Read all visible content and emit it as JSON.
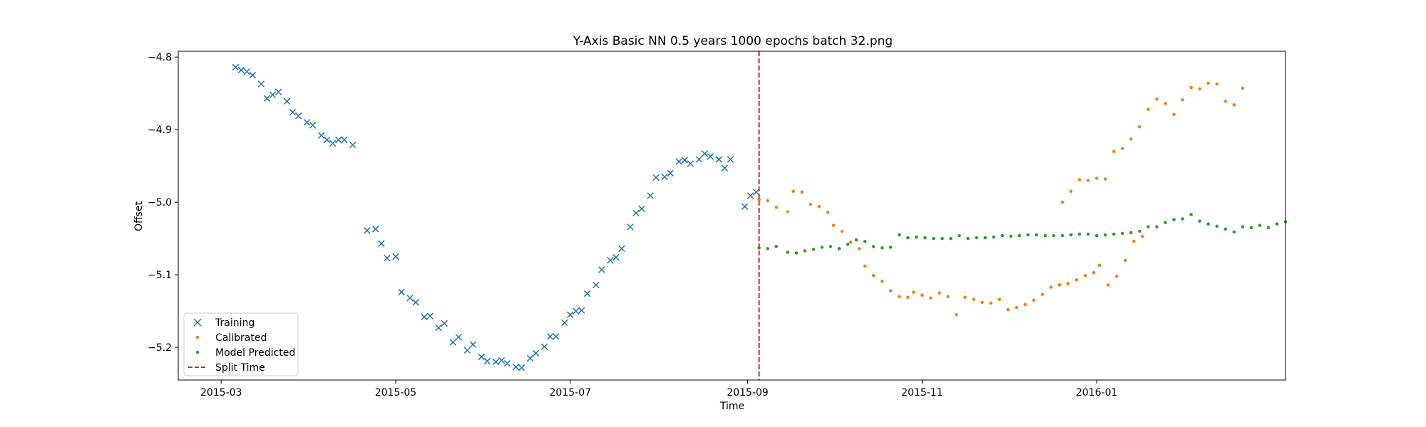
{
  "chart_data": {
    "type": "scatter",
    "title": "Y-Axis Basic NN 0.5 years 1000 epochs batch 32.png",
    "xlabel": "Time",
    "ylabel": "Offset",
    "xlim": [
      "2015-02-14",
      "2016-03-07"
    ],
    "ylim": [
      -5.245,
      -4.792
    ],
    "x_ticks": [
      {
        "date": "2015-03-01",
        "label": "2015-03"
      },
      {
        "date": "2015-05-01",
        "label": "2015-05"
      },
      {
        "date": "2015-07-01",
        "label": "2015-07"
      },
      {
        "date": "2015-09-01",
        "label": "2015-09"
      },
      {
        "date": "2015-11-01",
        "label": "2015-11"
      },
      {
        "date": "2016-01-01",
        "label": "2016-01"
      }
    ],
    "y_ticks": [
      {
        "value": -4.8,
        "label": "−4.8"
      },
      {
        "value": -4.9,
        "label": "−4.9"
      },
      {
        "value": -5.0,
        "label": "−5.0"
      },
      {
        "value": -5.1,
        "label": "−5.1"
      },
      {
        "value": -5.2,
        "label": "−5.2"
      }
    ],
    "grid": false,
    "legend_position": "lower-left",
    "split_time": "2015-09-05",
    "series": [
      {
        "name": "Training",
        "marker": "x",
        "color": "#1f77b4",
        "points": [
          [
            "2015-03-06",
            -4.814
          ],
          [
            "2015-03-08",
            -4.818
          ],
          [
            "2015-03-10",
            -4.82
          ],
          [
            "2015-03-12",
            -4.825
          ],
          [
            "2015-03-15",
            -4.837
          ],
          [
            "2015-03-17",
            -4.857
          ],
          [
            "2015-03-19",
            -4.852
          ],
          [
            "2015-03-21",
            -4.848
          ],
          [
            "2015-03-24",
            -4.861
          ],
          [
            "2015-03-26",
            -4.876
          ],
          [
            "2015-03-28",
            -4.881
          ],
          [
            "2015-03-31",
            -4.89
          ],
          [
            "2015-04-02",
            -4.894
          ],
          [
            "2015-04-05",
            -4.908
          ],
          [
            "2015-04-07",
            -4.914
          ],
          [
            "2015-04-09",
            -4.919
          ],
          [
            "2015-04-11",
            -4.914
          ],
          [
            "2015-04-13",
            -4.914
          ],
          [
            "2015-04-16",
            -4.921
          ],
          [
            "2015-04-21",
            -5.039
          ],
          [
            "2015-04-24",
            -5.037
          ],
          [
            "2015-04-26",
            -5.057
          ],
          [
            "2015-04-28",
            -5.077
          ],
          [
            "2015-05-01",
            -5.075
          ],
          [
            "2015-05-03",
            -5.124
          ],
          [
            "2015-05-06",
            -5.132
          ],
          [
            "2015-05-08",
            -5.138
          ],
          [
            "2015-05-11",
            -5.158
          ],
          [
            "2015-05-13",
            -5.157
          ],
          [
            "2015-05-16",
            -5.173
          ],
          [
            "2015-05-18",
            -5.167
          ],
          [
            "2015-05-21",
            -5.193
          ],
          [
            "2015-05-23",
            -5.186
          ],
          [
            "2015-05-26",
            -5.204
          ],
          [
            "2015-05-28",
            -5.196
          ],
          [
            "2015-05-31",
            -5.213
          ],
          [
            "2015-06-02",
            -5.219
          ],
          [
            "2015-06-05",
            -5.22
          ],
          [
            "2015-06-07",
            -5.218
          ],
          [
            "2015-06-09",
            -5.222
          ],
          [
            "2015-06-12",
            -5.227
          ],
          [
            "2015-06-14",
            -5.228
          ],
          [
            "2015-06-17",
            -5.215
          ],
          [
            "2015-06-19",
            -5.208
          ],
          [
            "2015-06-22",
            -5.199
          ],
          [
            "2015-06-24",
            -5.185
          ],
          [
            "2015-06-26",
            -5.185
          ],
          [
            "2015-06-29",
            -5.166
          ],
          [
            "2015-07-01",
            -5.155
          ],
          [
            "2015-07-03",
            -5.15
          ],
          [
            "2015-07-05",
            -5.149
          ],
          [
            "2015-07-07",
            -5.126
          ],
          [
            "2015-07-10",
            -5.114
          ],
          [
            "2015-07-12",
            -5.093
          ],
          [
            "2015-07-15",
            -5.08
          ],
          [
            "2015-07-17",
            -5.076
          ],
          [
            "2015-07-19",
            -5.064
          ],
          [
            "2015-07-22",
            -5.034
          ],
          [
            "2015-07-24",
            -5.015
          ],
          [
            "2015-07-26",
            -5.009
          ],
          [
            "2015-07-29",
            -4.991
          ],
          [
            "2015-07-31",
            -4.966
          ],
          [
            "2015-08-03",
            -4.965
          ],
          [
            "2015-08-05",
            -4.96
          ],
          [
            "2015-08-08",
            -4.944
          ],
          [
            "2015-08-10",
            -4.942
          ],
          [
            "2015-08-12",
            -4.947
          ],
          [
            "2015-08-15",
            -4.941
          ],
          [
            "2015-08-17",
            -4.933
          ],
          [
            "2015-08-19",
            -4.937
          ],
          [
            "2015-08-22",
            -4.941
          ],
          [
            "2015-08-24",
            -4.953
          ],
          [
            "2015-08-26",
            -4.941
          ],
          [
            "2015-08-31",
            -5.006
          ],
          [
            "2015-09-02",
            -4.991
          ],
          [
            "2015-09-04",
            -4.986
          ]
        ]
      },
      {
        "name": "Calibrated",
        "marker": "dot",
        "color": "#ff7f0e",
        "points": [
          [
            "2015-09-05",
            -4.996
          ],
          [
            "2015-09-08",
            -4.998
          ],
          [
            "2015-09-11",
            -5.007
          ],
          [
            "2015-09-15",
            -5.013
          ],
          [
            "2015-09-17",
            -4.985
          ],
          [
            "2015-09-20",
            -4.986
          ],
          [
            "2015-09-23",
            -5.003
          ],
          [
            "2015-09-26",
            -5.006
          ],
          [
            "2015-09-29",
            -5.014
          ],
          [
            "2015-10-01",
            -5.032
          ],
          [
            "2015-10-04",
            -5.04
          ],
          [
            "2015-10-07",
            -5.055
          ],
          [
            "2015-10-10",
            -5.064
          ],
          [
            "2015-10-12",
            -5.088
          ],
          [
            "2015-10-15",
            -5.101
          ],
          [
            "2015-10-18",
            -5.109
          ],
          [
            "2015-10-21",
            -5.122
          ],
          [
            "2015-10-24",
            -5.13
          ],
          [
            "2015-10-27",
            -5.131
          ],
          [
            "2015-10-29",
            -5.124
          ],
          [
            "2015-11-01",
            -5.128
          ],
          [
            "2015-11-04",
            -5.132
          ],
          [
            "2015-11-07",
            -5.125
          ],
          [
            "2015-11-10",
            -5.13
          ],
          [
            "2015-11-13",
            -5.155
          ],
          [
            "2015-11-16",
            -5.131
          ],
          [
            "2015-11-19",
            -5.134
          ],
          [
            "2015-11-22",
            -5.138
          ],
          [
            "2015-11-25",
            -5.139
          ],
          [
            "2015-11-28",
            -5.134
          ],
          [
            "2015-12-01",
            -5.148
          ],
          [
            "2015-12-04",
            -5.145
          ],
          [
            "2015-12-07",
            -5.141
          ],
          [
            "2015-12-10",
            -5.135
          ],
          [
            "2015-12-13",
            -5.127
          ],
          [
            "2015-12-16",
            -5.117
          ],
          [
            "2015-12-19",
            -5.114
          ],
          [
            "2015-12-22",
            -5.112
          ],
          [
            "2015-12-25",
            -5.107
          ],
          [
            "2015-12-28",
            -5.101
          ],
          [
            "2015-12-31",
            -5.097
          ],
          [
            "2016-01-02",
            -5.087
          ],
          [
            "2016-01-05",
            -5.114
          ],
          [
            "2016-01-08",
            -5.102
          ],
          [
            "2016-01-11",
            -5.08
          ],
          [
            "2016-01-14",
            -5.054
          ],
          [
            "2016-01-17",
            -5.047
          ],
          [
            "2015-12-20",
            -5.0
          ],
          [
            "2015-12-23",
            -4.985
          ],
          [
            "2015-12-26",
            -4.969
          ],
          [
            "2015-12-29",
            -4.97
          ],
          [
            "2016-01-01",
            -4.967
          ],
          [
            "2016-01-04",
            -4.968
          ],
          [
            "2016-01-07",
            -4.93
          ],
          [
            "2016-01-10",
            -4.926
          ],
          [
            "2016-01-13",
            -4.913
          ],
          [
            "2016-01-16",
            -4.896
          ],
          [
            "2016-01-19",
            -4.872
          ],
          [
            "2016-01-22",
            -4.858
          ],
          [
            "2016-01-25",
            -4.864
          ],
          [
            "2016-01-28",
            -4.879
          ],
          [
            "2016-01-31",
            -4.859
          ],
          [
            "2016-02-03",
            -4.842
          ],
          [
            "2016-02-06",
            -4.844
          ],
          [
            "2016-02-09",
            -4.836
          ],
          [
            "2016-02-12",
            -4.837
          ],
          [
            "2016-02-15",
            -4.861
          ],
          [
            "2016-02-18",
            -4.866
          ],
          [
            "2016-02-21",
            -4.843
          ]
        ]
      },
      {
        "name": "Model Predicted",
        "marker": "dot",
        "color": "#2ca02c",
        "points": [
          [
            "2015-09-05",
            -5.063
          ],
          [
            "2015-09-08",
            -5.064
          ],
          [
            "2015-09-11",
            -5.061
          ],
          [
            "2015-09-15",
            -5.069
          ],
          [
            "2015-09-18",
            -5.07
          ],
          [
            "2015-09-21",
            -5.067
          ],
          [
            "2015-09-24",
            -5.065
          ],
          [
            "2015-09-27",
            -5.062
          ],
          [
            "2015-09-30",
            -5.061
          ],
          [
            "2015-10-03",
            -5.064
          ],
          [
            "2015-10-06",
            -5.058
          ],
          [
            "2015-10-09",
            -5.052
          ],
          [
            "2015-10-12",
            -5.054
          ],
          [
            "2015-10-15",
            -5.061
          ],
          [
            "2015-10-18",
            -5.063
          ],
          [
            "2015-10-21",
            -5.062
          ],
          [
            "2015-10-24",
            -5.045
          ],
          [
            "2015-10-27",
            -5.049
          ],
          [
            "2015-10-30",
            -5.048
          ],
          [
            "2015-11-02",
            -5.049
          ],
          [
            "2015-11-05",
            -5.05
          ],
          [
            "2015-11-08",
            -5.05
          ],
          [
            "2015-11-11",
            -5.05
          ],
          [
            "2015-11-14",
            -5.046
          ],
          [
            "2015-11-17",
            -5.05
          ],
          [
            "2015-11-20",
            -5.049
          ],
          [
            "2015-11-23",
            -5.049
          ],
          [
            "2015-11-26",
            -5.048
          ],
          [
            "2015-11-29",
            -5.046
          ],
          [
            "2015-12-02",
            -5.047
          ],
          [
            "2015-12-05",
            -5.046
          ],
          [
            "2015-12-08",
            -5.045
          ],
          [
            "2015-12-11",
            -5.045
          ],
          [
            "2015-12-14",
            -5.046
          ],
          [
            "2015-12-17",
            -5.046
          ],
          [
            "2015-12-20",
            -5.046
          ],
          [
            "2015-12-23",
            -5.045
          ],
          [
            "2015-12-26",
            -5.044
          ],
          [
            "2015-12-29",
            -5.044
          ],
          [
            "2016-01-01",
            -5.046
          ],
          [
            "2016-01-04",
            -5.045
          ],
          [
            "2016-01-07",
            -5.044
          ],
          [
            "2016-01-10",
            -5.043
          ],
          [
            "2016-01-13",
            -5.042
          ],
          [
            "2016-01-16",
            -5.04
          ],
          [
            "2016-01-19",
            -5.034
          ],
          [
            "2016-01-22",
            -5.034
          ],
          [
            "2016-01-25",
            -5.028
          ],
          [
            "2016-01-28",
            -5.024
          ],
          [
            "2016-01-31",
            -5.023
          ],
          [
            "2016-02-03",
            -5.017
          ],
          [
            "2016-02-06",
            -5.026
          ],
          [
            "2016-02-09",
            -5.03
          ],
          [
            "2016-02-12",
            -5.033
          ],
          [
            "2016-02-15",
            -5.037
          ],
          [
            "2016-02-18",
            -5.041
          ],
          [
            "2016-02-21",
            -5.034
          ],
          [
            "2016-02-24",
            -5.035
          ],
          [
            "2016-02-27",
            -5.032
          ],
          [
            "2016-03-01",
            -5.035
          ],
          [
            "2016-03-04",
            -5.03
          ],
          [
            "2016-03-07",
            -5.027
          ]
        ]
      },
      {
        "name": "Split Time",
        "marker": "dashed-vline",
        "color": "#d62728"
      }
    ]
  }
}
